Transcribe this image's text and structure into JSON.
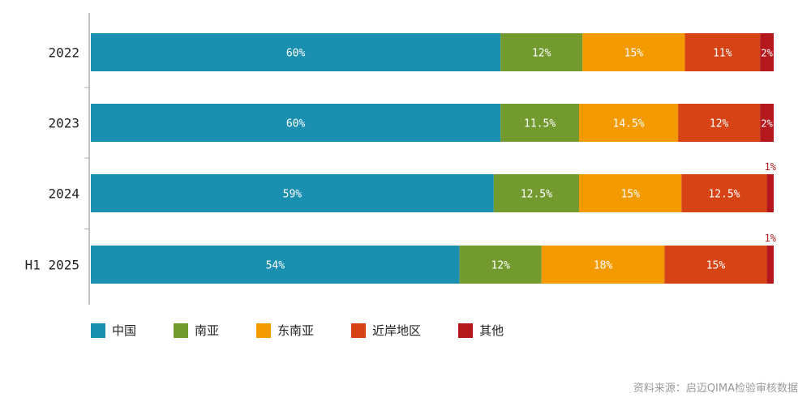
{
  "chart_data": {
    "type": "bar",
    "orientation": "horizontal",
    "stacked": true,
    "categories": [
      "2022",
      "2023",
      "2024",
      "H1 2025"
    ],
    "series": [
      {
        "name": "中国",
        "color": "#1a8fb0",
        "values": [
          60,
          60,
          59,
          54
        ],
        "labels": [
          "60%",
          "60%",
          "59%",
          "54%"
        ]
      },
      {
        "name": "南亚",
        "color": "#729a2f",
        "values": [
          12,
          11.5,
          12.5,
          12
        ],
        "labels": [
          "12%",
          "11.5%",
          "12.5%",
          "12%"
        ]
      },
      {
        "name": "东南亚",
        "color": "#f29a00",
        "values": [
          15,
          14.5,
          15,
          18
        ],
        "labels": [
          "15%",
          "14.5%",
          "15%",
          "18%"
        ]
      },
      {
        "name": "近岸地区",
        "color": "#d64416",
        "values": [
          11,
          12,
          12.5,
          15
        ],
        "labels": [
          "11%",
          "12%",
          "12.5%",
          "15%"
        ]
      },
      {
        "name": "其他",
        "color": "#b5181c",
        "values": [
          2,
          2,
          1,
          1
        ],
        "labels": [
          "2%",
          "2%",
          "1%",
          "1%"
        ]
      }
    ],
    "xlim": [
      0,
      100
    ],
    "grid": false,
    "legend_position": "bottom-left"
  },
  "source": "资料来源：启迈QIMA检验审核数据"
}
